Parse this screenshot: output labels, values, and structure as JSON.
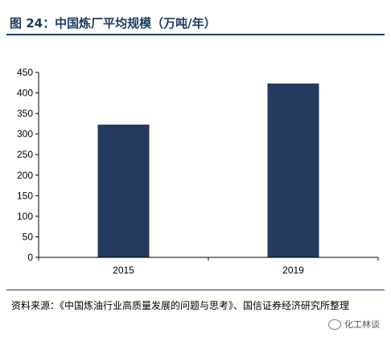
{
  "title": "图 24：中国炼厂平均规模（万吨/年）",
  "source": "资料来源：《中国炼油行业高质量发展的问题与思考》、国信证券经济研究所整理",
  "watermark": "化工林谈",
  "colors": {
    "bar": "#243a5e",
    "title": "#1f3a5f"
  },
  "chart_data": {
    "type": "bar",
    "categories": [
      "2015",
      "2019"
    ],
    "values": [
      323,
      423
    ],
    "yticks": [
      0,
      50,
      100,
      150,
      200,
      250,
      300,
      350,
      400,
      450
    ],
    "ylim": [
      0,
      450
    ],
    "title": "",
    "xlabel": "",
    "ylabel": "",
    "grid": false
  }
}
